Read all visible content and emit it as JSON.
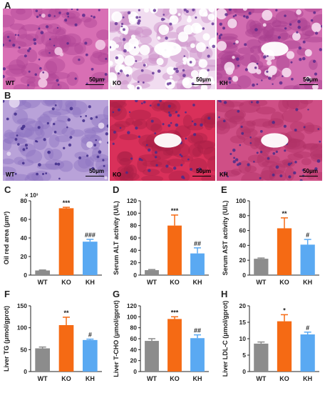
{
  "panel_labels": {
    "A": "A",
    "B": "B",
    "C": "C",
    "D": "D",
    "E": "E",
    "F": "F",
    "G": "G",
    "H": "H"
  },
  "micrographs": {
    "row_a": [
      {
        "group": "WT",
        "scale": "50μm",
        "stain": "H&E",
        "tone": "pink-dense"
      },
      {
        "group": "KO",
        "scale": "50μm",
        "stain": "H&E",
        "tone": "pale-vacuolated"
      },
      {
        "group": "KH",
        "scale": "50μm",
        "stain": "H&E",
        "tone": "pink-mixed"
      }
    ],
    "row_b": [
      {
        "group": "WT",
        "scale": "50μm",
        "stain": "Oil Red O",
        "tone": "purple-light"
      },
      {
        "group": "KO",
        "scale": "50μm",
        "stain": "Oil Red O",
        "tone": "red-heavy"
      },
      {
        "group": "KH",
        "scale": "50μm",
        "stain": "Oil Red O",
        "tone": "red-moderate"
      }
    ]
  },
  "colors": {
    "WT": "#8c8c8c",
    "KO": "#f56a14",
    "KH": "#5aa9f2",
    "axis": "#222222"
  },
  "chart_data": [
    {
      "panel": "C",
      "type": "bar",
      "categories": [
        "WT",
        "KO",
        "KH"
      ],
      "values": [
        5,
        72,
        36
      ],
      "errors": [
        0.5,
        1,
        2.5
      ],
      "ylabel": "Oil red area (μm²)",
      "multiplier": "× 10³",
      "ylim": [
        0,
        80
      ],
      "yticks": [
        0,
        20,
        40,
        60,
        80
      ],
      "significance": [
        "",
        "***",
        "###"
      ]
    },
    {
      "panel": "D",
      "type": "bar",
      "categories": [
        "WT",
        "KO",
        "KH"
      ],
      "values": [
        8,
        80,
        35
      ],
      "errors": [
        1,
        17,
        9
      ],
      "ylabel": "Serum ALT activity (U/L)",
      "ylim": [
        0,
        120
      ],
      "yticks": [
        0,
        20,
        40,
        60,
        80,
        100,
        120
      ],
      "significance": [
        "",
        "***",
        "##"
      ]
    },
    {
      "panel": "E",
      "type": "bar",
      "categories": [
        "WT",
        "KO",
        "KH"
      ],
      "values": [
        22,
        63,
        41
      ],
      "errors": [
        1,
        14,
        7
      ],
      "ylabel": "Serum AST activity (U/L)",
      "ylim": [
        0,
        100
      ],
      "yticks": [
        0,
        20,
        40,
        60,
        80,
        100
      ],
      "significance": [
        "",
        "**",
        "#"
      ]
    },
    {
      "panel": "F",
      "type": "bar",
      "categories": [
        "WT",
        "KO",
        "KH"
      ],
      "values": [
        53,
        106,
        72
      ],
      "errors": [
        3,
        18,
        2
      ],
      "ylabel": "Liver TG (μmol/gprot)",
      "ylim": [
        0,
        150
      ],
      "yticks": [
        0,
        50,
        100,
        150
      ],
      "significance": [
        "",
        "**",
        "#"
      ]
    },
    {
      "panel": "G",
      "type": "bar",
      "categories": [
        "WT",
        "KO",
        "KH"
      ],
      "values": [
        56,
        96,
        61
      ],
      "errors": [
        4,
        4,
        6
      ],
      "ylabel": "Liver T-CHO (μmol/gprot)",
      "ylim": [
        0,
        120
      ],
      "yticks": [
        0,
        20,
        40,
        60,
        80,
        100,
        120
      ],
      "significance": [
        "",
        "***",
        "##"
      ]
    },
    {
      "panel": "H",
      "type": "bar",
      "categories": [
        "WT",
        "KO",
        "KH"
      ],
      "values": [
        8.5,
        15.3,
        11.3
      ],
      "errors": [
        0.5,
        2,
        0.7
      ],
      "ylabel": "Liver LDL-C (μmol/gprot)",
      "ylim": [
        0,
        20
      ],
      "yticks": [
        0,
        5,
        10,
        15,
        20
      ],
      "significance": [
        "",
        "*",
        "#"
      ]
    }
  ]
}
